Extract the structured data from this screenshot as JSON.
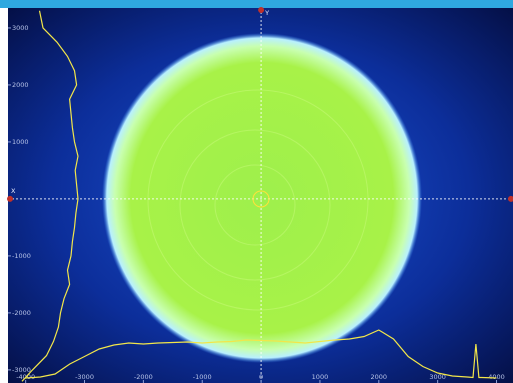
{
  "chart_data": {
    "type": "profile",
    "x_axis_label": "X",
    "y_axis_label": "Y",
    "xlim": [
      -4300,
      4280
    ],
    "ylim": [
      -3230,
      3350
    ],
    "xticks": [
      -4000,
      -3000,
      -2000,
      -1000,
      0,
      1000,
      2000,
      3000,
      4000
    ],
    "yticks": [
      3000,
      2000,
      1000,
      -1000,
      -2000,
      -3000
    ],
    "profile_color": "#f2e64a",
    "horizontal_profile": {
      "x": [
        -4000,
        -3750,
        -3500,
        -3250,
        -3000,
        -2750,
        -2500,
        -2250,
        -2000,
        -1750,
        -1500,
        -1250,
        -1000,
        -750,
        -500,
        -250,
        0,
        250,
        500,
        750,
        1000,
        1250,
        1500,
        1750,
        2000,
        2250,
        2500,
        2750,
        3000,
        3250,
        3500,
        3600,
        3650,
        3700,
        3750,
        4000
      ],
      "values": [
        2,
        4,
        10,
        30,
        45,
        60,
        68,
        72,
        70,
        72,
        73,
        74,
        72,
        74,
        75,
        78,
        77,
        76,
        74,
        72,
        75,
        78,
        80,
        85,
        98,
        80,
        45,
        25,
        12,
        6,
        4,
        3,
        70,
        3,
        3,
        2
      ]
    },
    "vertical_profile": {
      "y": [
        3300,
        3000,
        2750,
        2500,
        2250,
        2000,
        1750,
        1500,
        1250,
        1000,
        750,
        500,
        250,
        0,
        -250,
        -500,
        -750,
        -1000,
        -1250,
        -1500,
        -1750,
        -2000,
        -2250,
        -2500,
        -2750,
        -3000,
        -3200
      ],
      "values": [
        45,
        50,
        70,
        85,
        95,
        98,
        88,
        90,
        92,
        95,
        100,
        96,
        98,
        100,
        97,
        95,
        92,
        90,
        85,
        88,
        80,
        75,
        72,
        65,
        55,
        35,
        20
      ]
    }
  }
}
